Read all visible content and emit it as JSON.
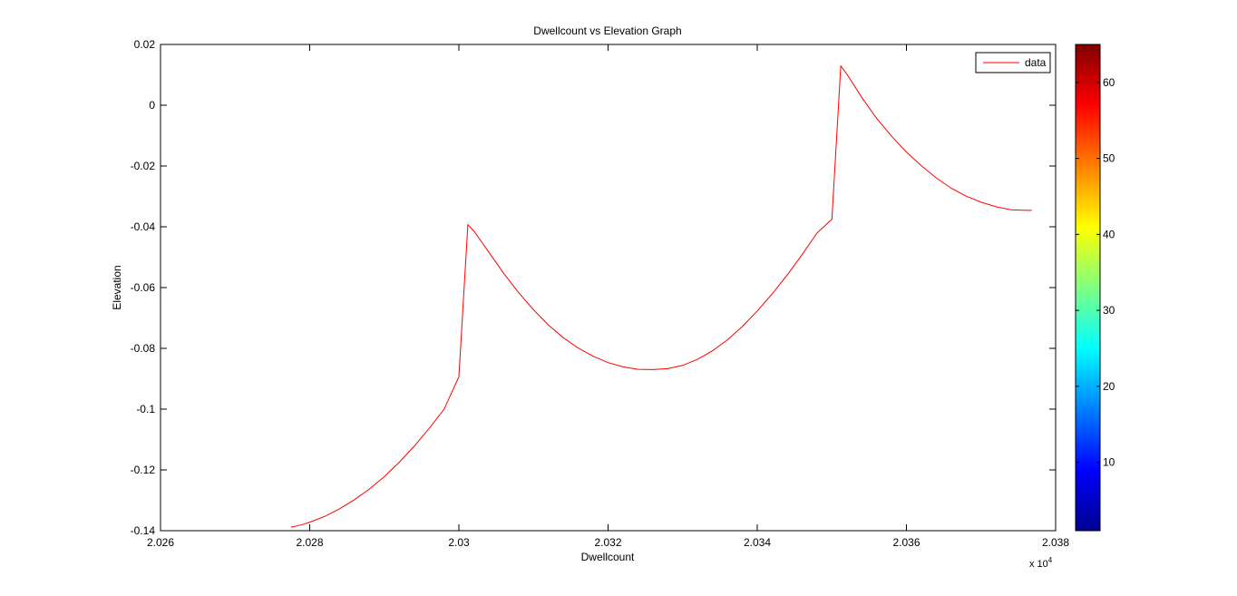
{
  "chart_data": {
    "type": "line",
    "title": "Dwellcount vs Elevation Graph",
    "xlabel": "Dwellcount",
    "ylabel": "Elevation",
    "x_multiplier_label": "x 10",
    "x_multiplier_exponent": "4",
    "xlim": [
      2.026,
      2.038
    ],
    "ylim": [
      -0.14,
      0.02
    ],
    "x_ticks": [
      "2.026",
      "2.028",
      "2.03",
      "2.032",
      "2.034",
      "2.036",
      "2.038"
    ],
    "y_ticks": [
      "0.02",
      "0",
      "-0.02",
      "-0.04",
      "-0.06",
      "-0.08",
      "-0.1",
      "-0.12",
      "-0.14"
    ],
    "grid": false,
    "legend_position": "top-right",
    "series": [
      {
        "name": "data",
        "color": "#ff0000",
        "x": [
          2.02775,
          2.0278,
          2.0279,
          2.028,
          2.0282,
          2.0284,
          2.0286,
          2.0288,
          2.029,
          2.0292,
          2.0294,
          2.0296,
          2.0298,
          2.03,
          2.03012,
          2.0302,
          2.0304,
          2.0306,
          2.0308,
          2.031,
          2.0312,
          2.0314,
          2.0316,
          2.0318,
          2.032,
          2.0322,
          2.0324,
          2.0326,
          2.0328,
          2.033,
          2.0332,
          2.0334,
          2.0336,
          2.0338,
          2.034,
          2.0342,
          2.0344,
          2.0346,
          2.0348,
          2.035,
          2.03512,
          2.0352,
          2.0354,
          2.0356,
          2.0358,
          2.036,
          2.0362,
          2.0364,
          2.0366,
          2.0368,
          2.037,
          2.0372,
          2.0374,
          2.0376,
          2.03768
        ],
        "y": [
          -0.1388,
          -0.1386,
          -0.138,
          -0.1372,
          -0.1353,
          -0.1328,
          -0.1298,
          -0.1263,
          -0.1222,
          -0.1175,
          -0.1122,
          -0.1064,
          -0.1001,
          -0.0893,
          -0.0393,
          -0.0413,
          -0.0483,
          -0.0553,
          -0.0616,
          -0.0673,
          -0.0723,
          -0.0765,
          -0.0799,
          -0.0826,
          -0.0847,
          -0.0861,
          -0.0869,
          -0.087,
          -0.0867,
          -0.0856,
          -0.0836,
          -0.0808,
          -0.0772,
          -0.0728,
          -0.0677,
          -0.0621,
          -0.0559,
          -0.0492,
          -0.0421,
          -0.0375,
          0.0129,
          0.0103,
          0.0026,
          -0.0043,
          -0.0102,
          -0.0154,
          -0.0199,
          -0.0239,
          -0.0273,
          -0.0299,
          -0.0319,
          -0.0334,
          -0.0344,
          -0.0346,
          -0.0346
        ]
      }
    ],
    "colorbar": {
      "range": [
        1,
        65
      ],
      "ticks": [
        "10",
        "20",
        "30",
        "40",
        "50",
        "60"
      ],
      "colormap": "jet"
    }
  }
}
